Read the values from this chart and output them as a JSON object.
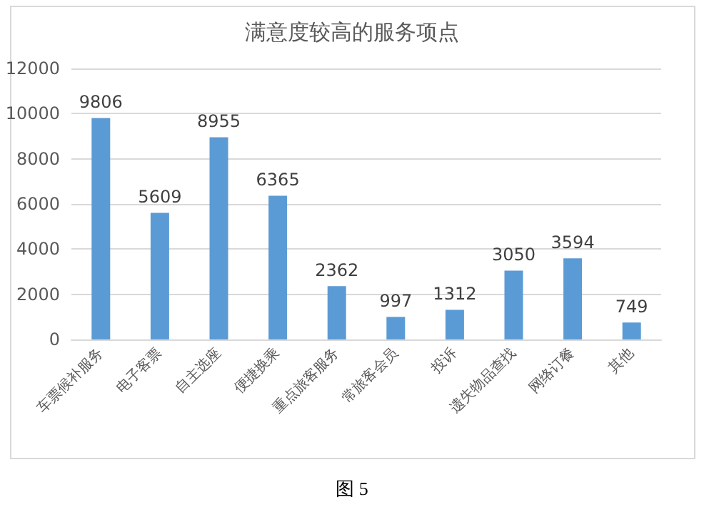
{
  "chart_data": {
    "type": "bar",
    "title": "满意度较高的服务项点",
    "categories": [
      "车票候补服务",
      "电子客票",
      "自主选座",
      "便捷换乘",
      "重点旅客服务",
      "常旅客会员",
      "投诉",
      "遗失物品查找",
      "网络订餐",
      "其他"
    ],
    "values": [
      9806,
      5609,
      8955,
      6365,
      2362,
      997,
      1312,
      3050,
      3594,
      749
    ],
    "color": "#5b9bd5",
    "ylim": [
      0,
      12000
    ],
    "yticks": [
      0,
      2000,
      4000,
      6000,
      8000,
      10000,
      12000
    ],
    "grid": "y",
    "data_labels": true,
    "annotations": [
      "图 5"
    ]
  }
}
